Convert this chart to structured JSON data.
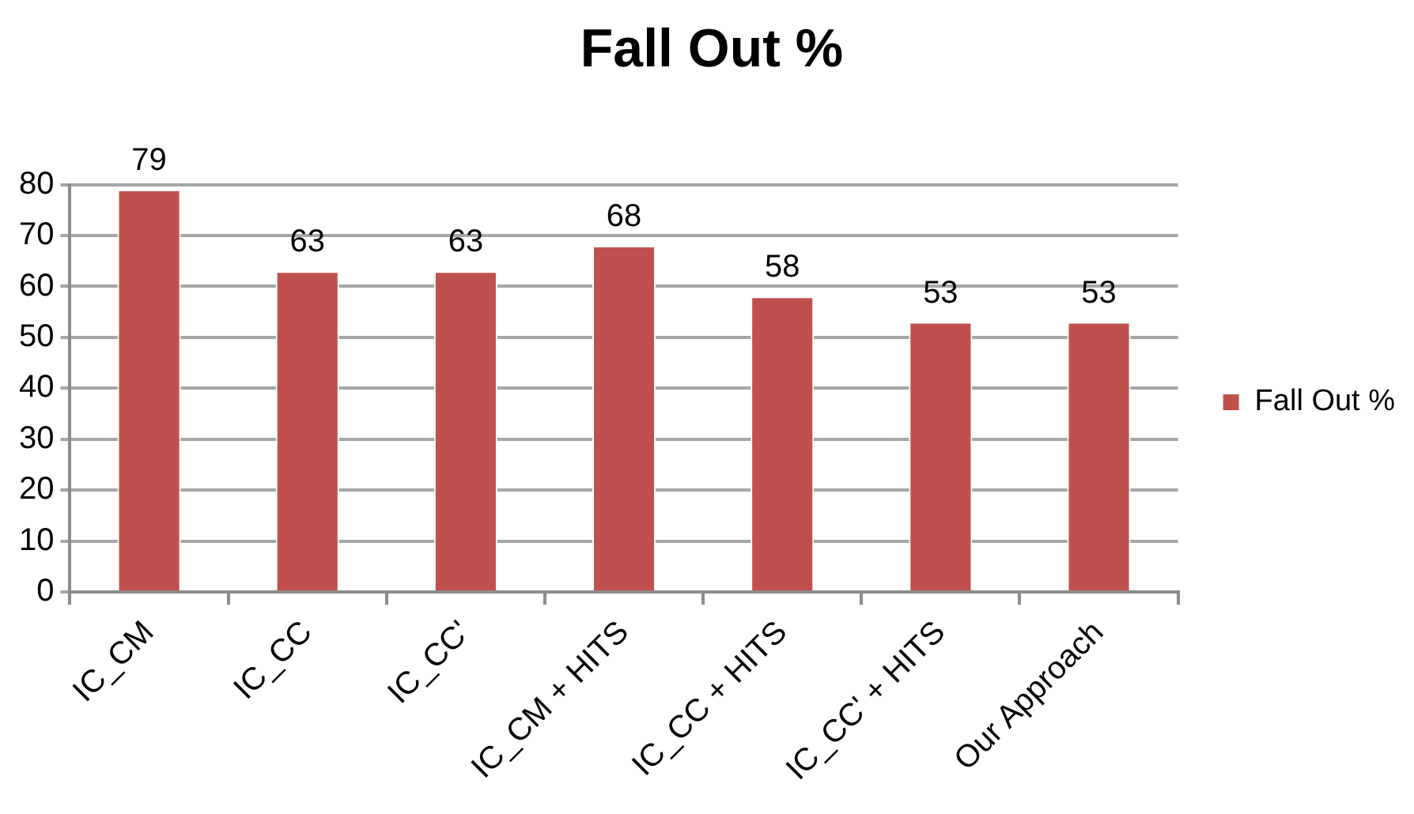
{
  "chart_data": {
    "type": "bar",
    "title": "Fall Out %",
    "categories": [
      "IC_CM",
      "IC_CC",
      "IC_CC'",
      "IC_CM + HITS",
      "IC_CC + HITS",
      "IC_CC' + HITS",
      "Our Approach"
    ],
    "series": [
      {
        "name": "Fall Out %",
        "color": "#c0504d",
        "values": [
          79,
          63,
          63,
          68,
          58,
          53,
          53
        ]
      }
    ],
    "ylim": [
      0,
      80
    ],
    "yticks": [
      0,
      10,
      20,
      30,
      40,
      50,
      60,
      70,
      80
    ],
    "grid": "y",
    "legend": "right",
    "data_labels": true
  }
}
